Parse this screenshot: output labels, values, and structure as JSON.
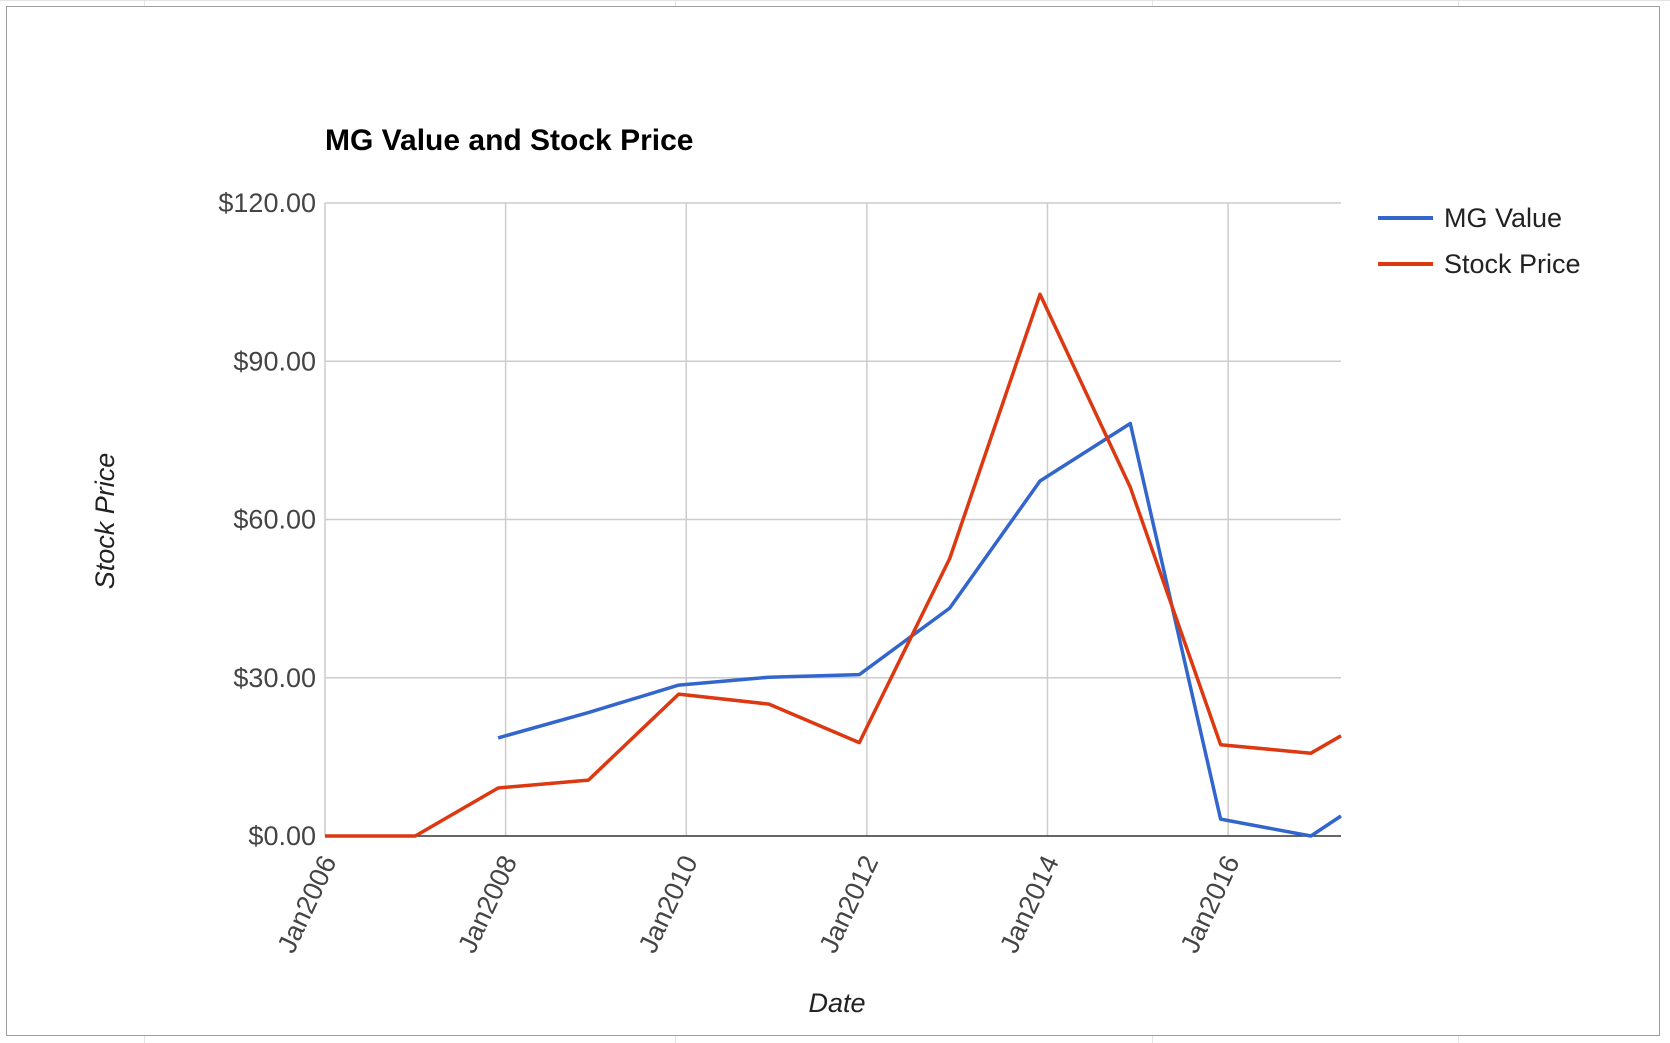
{
  "chart_data": {
    "type": "line",
    "title": "MG Value and Stock Price",
    "xlabel": "Date",
    "ylabel": "Stock Price",
    "x_tick_labels": [
      "Jan2006",
      "Jan2008",
      "Jan2010",
      "Jan2012",
      "Jan2014",
      "Jan2016"
    ],
    "y_tick_labels": [
      "$0.00",
      "$30.00",
      "$60.00",
      "$90.00",
      "$120.00"
    ],
    "ylim": [
      0,
      120
    ],
    "xlim": [
      "2006-01",
      "2017-04"
    ],
    "grid": true,
    "legend_position": "right",
    "series": [
      {
        "name": "MG Value",
        "color": "#3366cc",
        "points": [
          {
            "x": "2007-12",
            "y": 18.6
          },
          {
            "x": "2008-12",
            "y": 23.4
          },
          {
            "x": "2009-12",
            "y": 28.6
          },
          {
            "x": "2010-12",
            "y": 30.1
          },
          {
            "x": "2011-12",
            "y": 30.6
          },
          {
            "x": "2012-12",
            "y": 43.2
          },
          {
            "x": "2013-12",
            "y": 67.3
          },
          {
            "x": "2014-12",
            "y": 78.2
          },
          {
            "x": "2015-12",
            "y": 3.2
          },
          {
            "x": "2016-12",
            "y": 0.0
          },
          {
            "x": "2017-04",
            "y": 3.8
          }
        ]
      },
      {
        "name": "Stock Price",
        "color": "#dc3912",
        "points": [
          {
            "x": "2006-01",
            "y": 0.0
          },
          {
            "x": "2007-01",
            "y": 0.0
          },
          {
            "x": "2007-12",
            "y": 9.1
          },
          {
            "x": "2008-12",
            "y": 10.6
          },
          {
            "x": "2009-12",
            "y": 26.9
          },
          {
            "x": "2010-12",
            "y": 25.0
          },
          {
            "x": "2011-12",
            "y": 17.7
          },
          {
            "x": "2012-12",
            "y": 52.6
          },
          {
            "x": "2013-12",
            "y": 102.7
          },
          {
            "x": "2014-12",
            "y": 66.1
          },
          {
            "x": "2015-12",
            "y": 17.3
          },
          {
            "x": "2016-12",
            "y": 15.7
          },
          {
            "x": "2017-04",
            "y": 19.0
          }
        ]
      }
    ]
  }
}
